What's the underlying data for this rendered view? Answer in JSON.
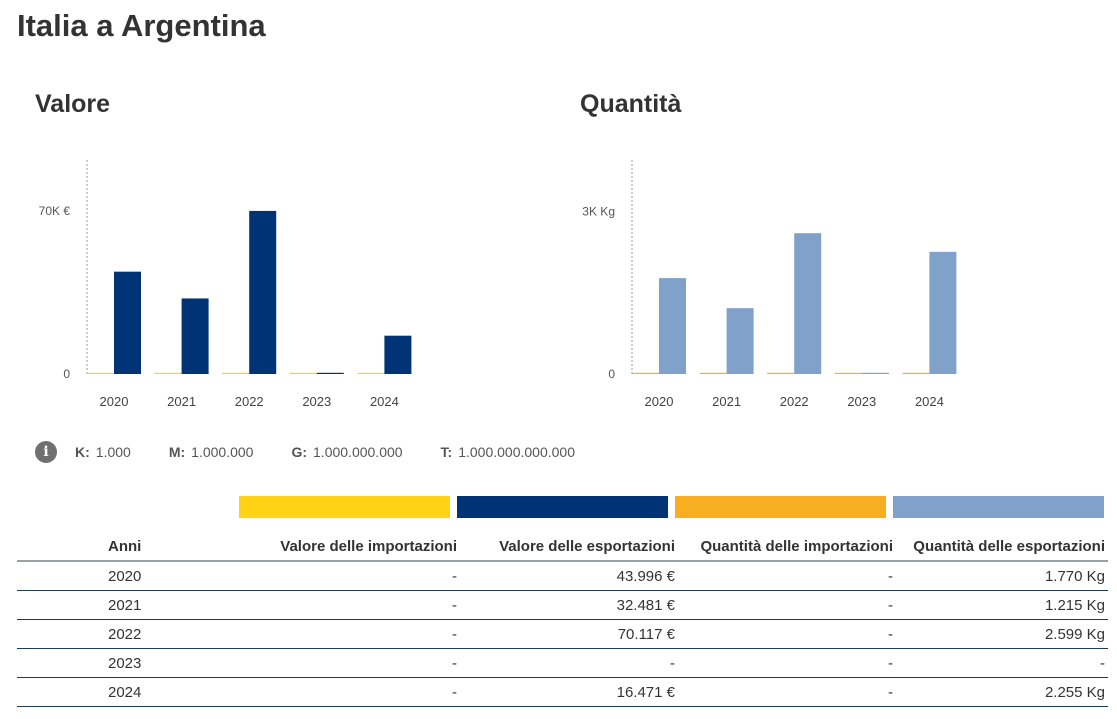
{
  "page": {
    "title": "Italia a Argentina"
  },
  "colors": {
    "import_value": "#FFD215",
    "export_value": "#003375",
    "import_quantity": "#F7AE21",
    "export_quantity": "#80A1CA"
  },
  "chart_data": [
    {
      "type": "bar",
      "title": "Valore",
      "categories": [
        "2020",
        "2021",
        "2022",
        "2023",
        "2024"
      ],
      "series": [
        {
          "name": "Valore delle importazioni",
          "values": [
            0,
            0,
            0,
            0,
            0
          ],
          "color": "#FFD215"
        },
        {
          "name": "Valore delle esportazioni",
          "values": [
            43996,
            32481,
            70117,
            0,
            16471
          ],
          "color": "#003375"
        }
      ],
      "yticks": [
        {
          "value": 0,
          "label": "0"
        },
        {
          "value": 70000,
          "label": "70K €"
        }
      ],
      "ylim": [
        0,
        92000
      ],
      "xlabel": "",
      "ylabel": ""
    },
    {
      "type": "bar",
      "title": "Quantità",
      "categories": [
        "2020",
        "2021",
        "2022",
        "2023",
        "2024"
      ],
      "series": [
        {
          "name": "Quantità delle importazioni",
          "values": [
            0,
            0,
            0,
            0,
            0
          ],
          "color": "#F7AE21"
        },
        {
          "name": "Quantità delle esportazioni",
          "values": [
            1770,
            1215,
            2599,
            0,
            2255
          ],
          "color": "#80A1CA"
        }
      ],
      "yticks": [
        {
          "value": 0,
          "label": "0"
        },
        {
          "value": 3000,
          "label": "3K Kg"
        }
      ],
      "ylim": [
        0,
        3950
      ],
      "xlabel": "",
      "ylabel": ""
    }
  ],
  "legend": {
    "info_icon": "info-icon",
    "items": [
      {
        "key": "K:",
        "value": "1.000"
      },
      {
        "key": "M:",
        "value": "1.000.000"
      },
      {
        "key": "G:",
        "value": "1.000.000.000"
      },
      {
        "key": "T:",
        "value": "1.000.000.000.000"
      }
    ]
  },
  "table": {
    "headers": [
      "Anni",
      "Valore delle importazioni",
      "Valore delle esportazioni",
      "Quantità delle importazioni",
      "Quantità delle esportazioni"
    ],
    "rows": [
      [
        "2020",
        "-",
        "43.996 €",
        "-",
        "1.770 Kg"
      ],
      [
        "2021",
        "-",
        "32.481 €",
        "-",
        "1.215 Kg"
      ],
      [
        "2022",
        "-",
        "70.117 €",
        "-",
        "2.599 Kg"
      ],
      [
        "2023",
        "-",
        "-",
        "-",
        "-"
      ],
      [
        "2024",
        "-",
        "16.471 €",
        "-",
        "2.255 Kg"
      ]
    ]
  }
}
